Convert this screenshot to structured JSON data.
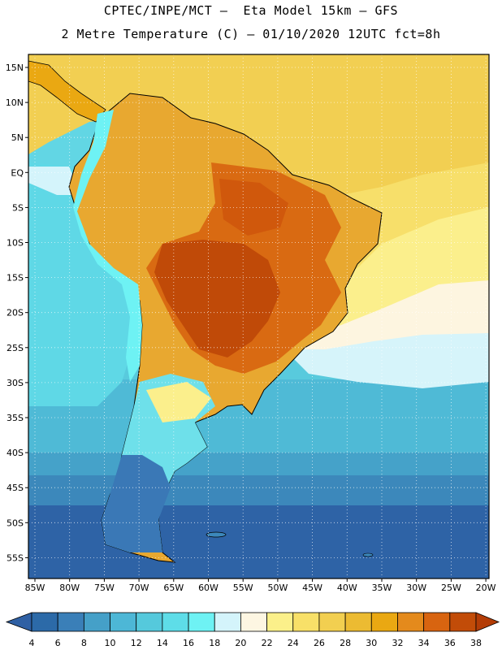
{
  "header": {
    "line1": "CPTEC/INPE/MCT –  Eta Model 15km – GFS",
    "line2": "2 Metre Temperature (C) – 01/10/2020 12UTC fct=8h"
  },
  "map": {
    "lat_labels": [
      "15N",
      "10N",
      "5N",
      "EQ",
      "5S",
      "10S",
      "15S",
      "20S",
      "25S",
      "30S",
      "35S",
      "40S",
      "45S",
      "50S",
      "55S"
    ],
    "lon_labels": [
      "85W",
      "80W",
      "75W",
      "70W",
      "65W",
      "60W",
      "55W",
      "50W",
      "45W",
      "40W",
      "35W",
      "30W",
      "25W",
      "20W"
    ]
  },
  "colorbar": {
    "labels": [
      "4",
      "6",
      "8",
      "10",
      "12",
      "14",
      "16",
      "18",
      "20",
      "22",
      "24",
      "26",
      "28",
      "30",
      "32",
      "34",
      "36",
      "38"
    ],
    "colors": [
      "#2c6aa8",
      "#3a7fb8",
      "#45a0c8",
      "#4db7d6",
      "#55c9dc",
      "#5edde8",
      "#6ef2f4",
      "#d4f4fb",
      "#fdf6e2",
      "#fbf08a",
      "#f8e068",
      "#f2cf50",
      "#ecbb32",
      "#eaa812",
      "#e48a1c",
      "#d86410",
      "#c24c08"
    ],
    "under_color": "#2f60a4",
    "over_color": "#b33c06"
  }
}
